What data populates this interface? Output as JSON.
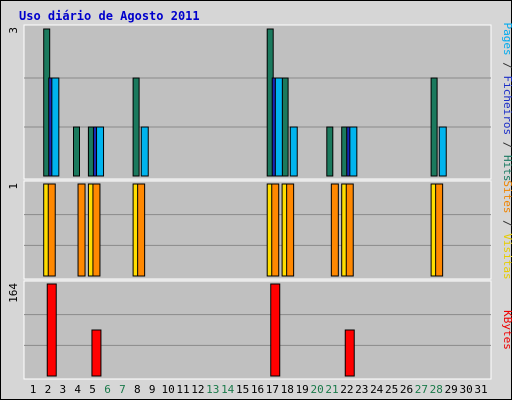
{
  "chart_data": {
    "type": "bar",
    "title": "Uso diário de Agosto 2011",
    "days": [
      "1",
      "2",
      "3",
      "4",
      "5",
      "6",
      "7",
      "8",
      "9",
      "10",
      "11",
      "12",
      "13",
      "14",
      "15",
      "16",
      "17",
      "18",
      "19",
      "20",
      "21",
      "22",
      "23",
      "24",
      "25",
      "26",
      "27",
      "28",
      "29",
      "30",
      "31"
    ],
    "weekend_days": [
      "6",
      "7",
      "13",
      "14",
      "20",
      "21",
      "27",
      "28"
    ],
    "panels": [
      {
        "id": "pages-files-hits",
        "ymax_label": "3",
        "ylim": [
          0,
          3
        ],
        "axis_label_parts": [
          {
            "text": "Pages",
            "color": "#00aaee"
          },
          {
            "text": " / ",
            "color": "#333333"
          },
          {
            "text": "Ficheiros",
            "color": "#1b2ec7"
          },
          {
            "text": " / ",
            "color": "#333333"
          },
          {
            "text": "Hits",
            "color": "#1a7a62"
          }
        ],
        "series": [
          {
            "name": "Hits",
            "color": "#1b7a5e",
            "values": [
              0,
              3,
              0,
              1,
              1,
              0,
              0,
              2,
              0,
              0,
              0,
              0,
              0,
              0,
              0,
              0,
              3,
              2,
              0,
              0,
              1,
              1,
              0,
              0,
              0,
              0,
              0,
              2,
              0,
              0,
              0
            ]
          },
          {
            "name": "Ficheiros",
            "color": "#1728b5",
            "values": [
              0,
              2,
              0,
              0,
              1,
              0,
              0,
              0,
              0,
              0,
              0,
              0,
              0,
              0,
              0,
              0,
              2,
              0,
              0,
              0,
              0,
              1,
              0,
              0,
              0,
              0,
              0,
              0,
              0,
              0,
              0
            ]
          },
          {
            "name": "Pages",
            "color": "#00b4ee",
            "values": [
              0,
              2,
              0,
              0,
              1,
              0,
              0,
              1,
              0,
              0,
              0,
              0,
              0,
              0,
              0,
              0,
              2,
              1,
              0,
              0,
              0,
              1,
              0,
              0,
              0,
              0,
              0,
              1,
              0,
              0,
              0
            ]
          }
        ]
      },
      {
        "id": "sites-visits",
        "ymax_label": "1",
        "ylim": [
          0,
          1
        ],
        "axis_label_parts": [
          {
            "text": "Sites",
            "color": "#ee8400"
          },
          {
            "text": " / ",
            "color": "#333333"
          },
          {
            "text": "Visitas",
            "color": "#e6cc00"
          }
        ],
        "series": [
          {
            "name": "Visitas",
            "color": "#ffdd00",
            "values": [
              0,
              1,
              0,
              0,
              1,
              0,
              0,
              1,
              0,
              0,
              0,
              0,
              0,
              0,
              0,
              0,
              1,
              1,
              0,
              0,
              0,
              1,
              0,
              0,
              0,
              0,
              0,
              1,
              0,
              0,
              0
            ]
          },
          {
            "name": "Sites",
            "color": "#ff8800",
            "values": [
              0,
              1,
              0,
              1,
              1,
              0,
              0,
              1,
              0,
              0,
              0,
              0,
              0,
              0,
              0,
              0,
              1,
              1,
              0,
              0,
              1,
              1,
              0,
              0,
              0,
              0,
              0,
              1,
              0,
              0,
              0
            ]
          }
        ]
      },
      {
        "id": "kbytes",
        "ymax_label": "164",
        "ylim": [
          0,
          164
        ],
        "axis_label_parts": [
          {
            "text": "KBytes",
            "color": "#ee0000"
          }
        ],
        "series": [
          {
            "name": "KBytes",
            "color": "#ff0000",
            "values": [
              0,
              164,
              0,
              0,
              82,
              0,
              0,
              0,
              0,
              0,
              0,
              0,
              0,
              0,
              0,
              0,
              164,
              0,
              0,
              0,
              0,
              82,
              0,
              0,
              0,
              0,
              0,
              0,
              0,
              0,
              0
            ]
          }
        ]
      }
    ],
    "colors": {
      "plot_bg": "#c0c0c0",
      "frame_bg": "#d6d6d6",
      "grid": "#8a8a8a",
      "title": "#0000cc",
      "weekday_label": "#000000",
      "weekend_label": "#1a7a4a"
    }
  }
}
